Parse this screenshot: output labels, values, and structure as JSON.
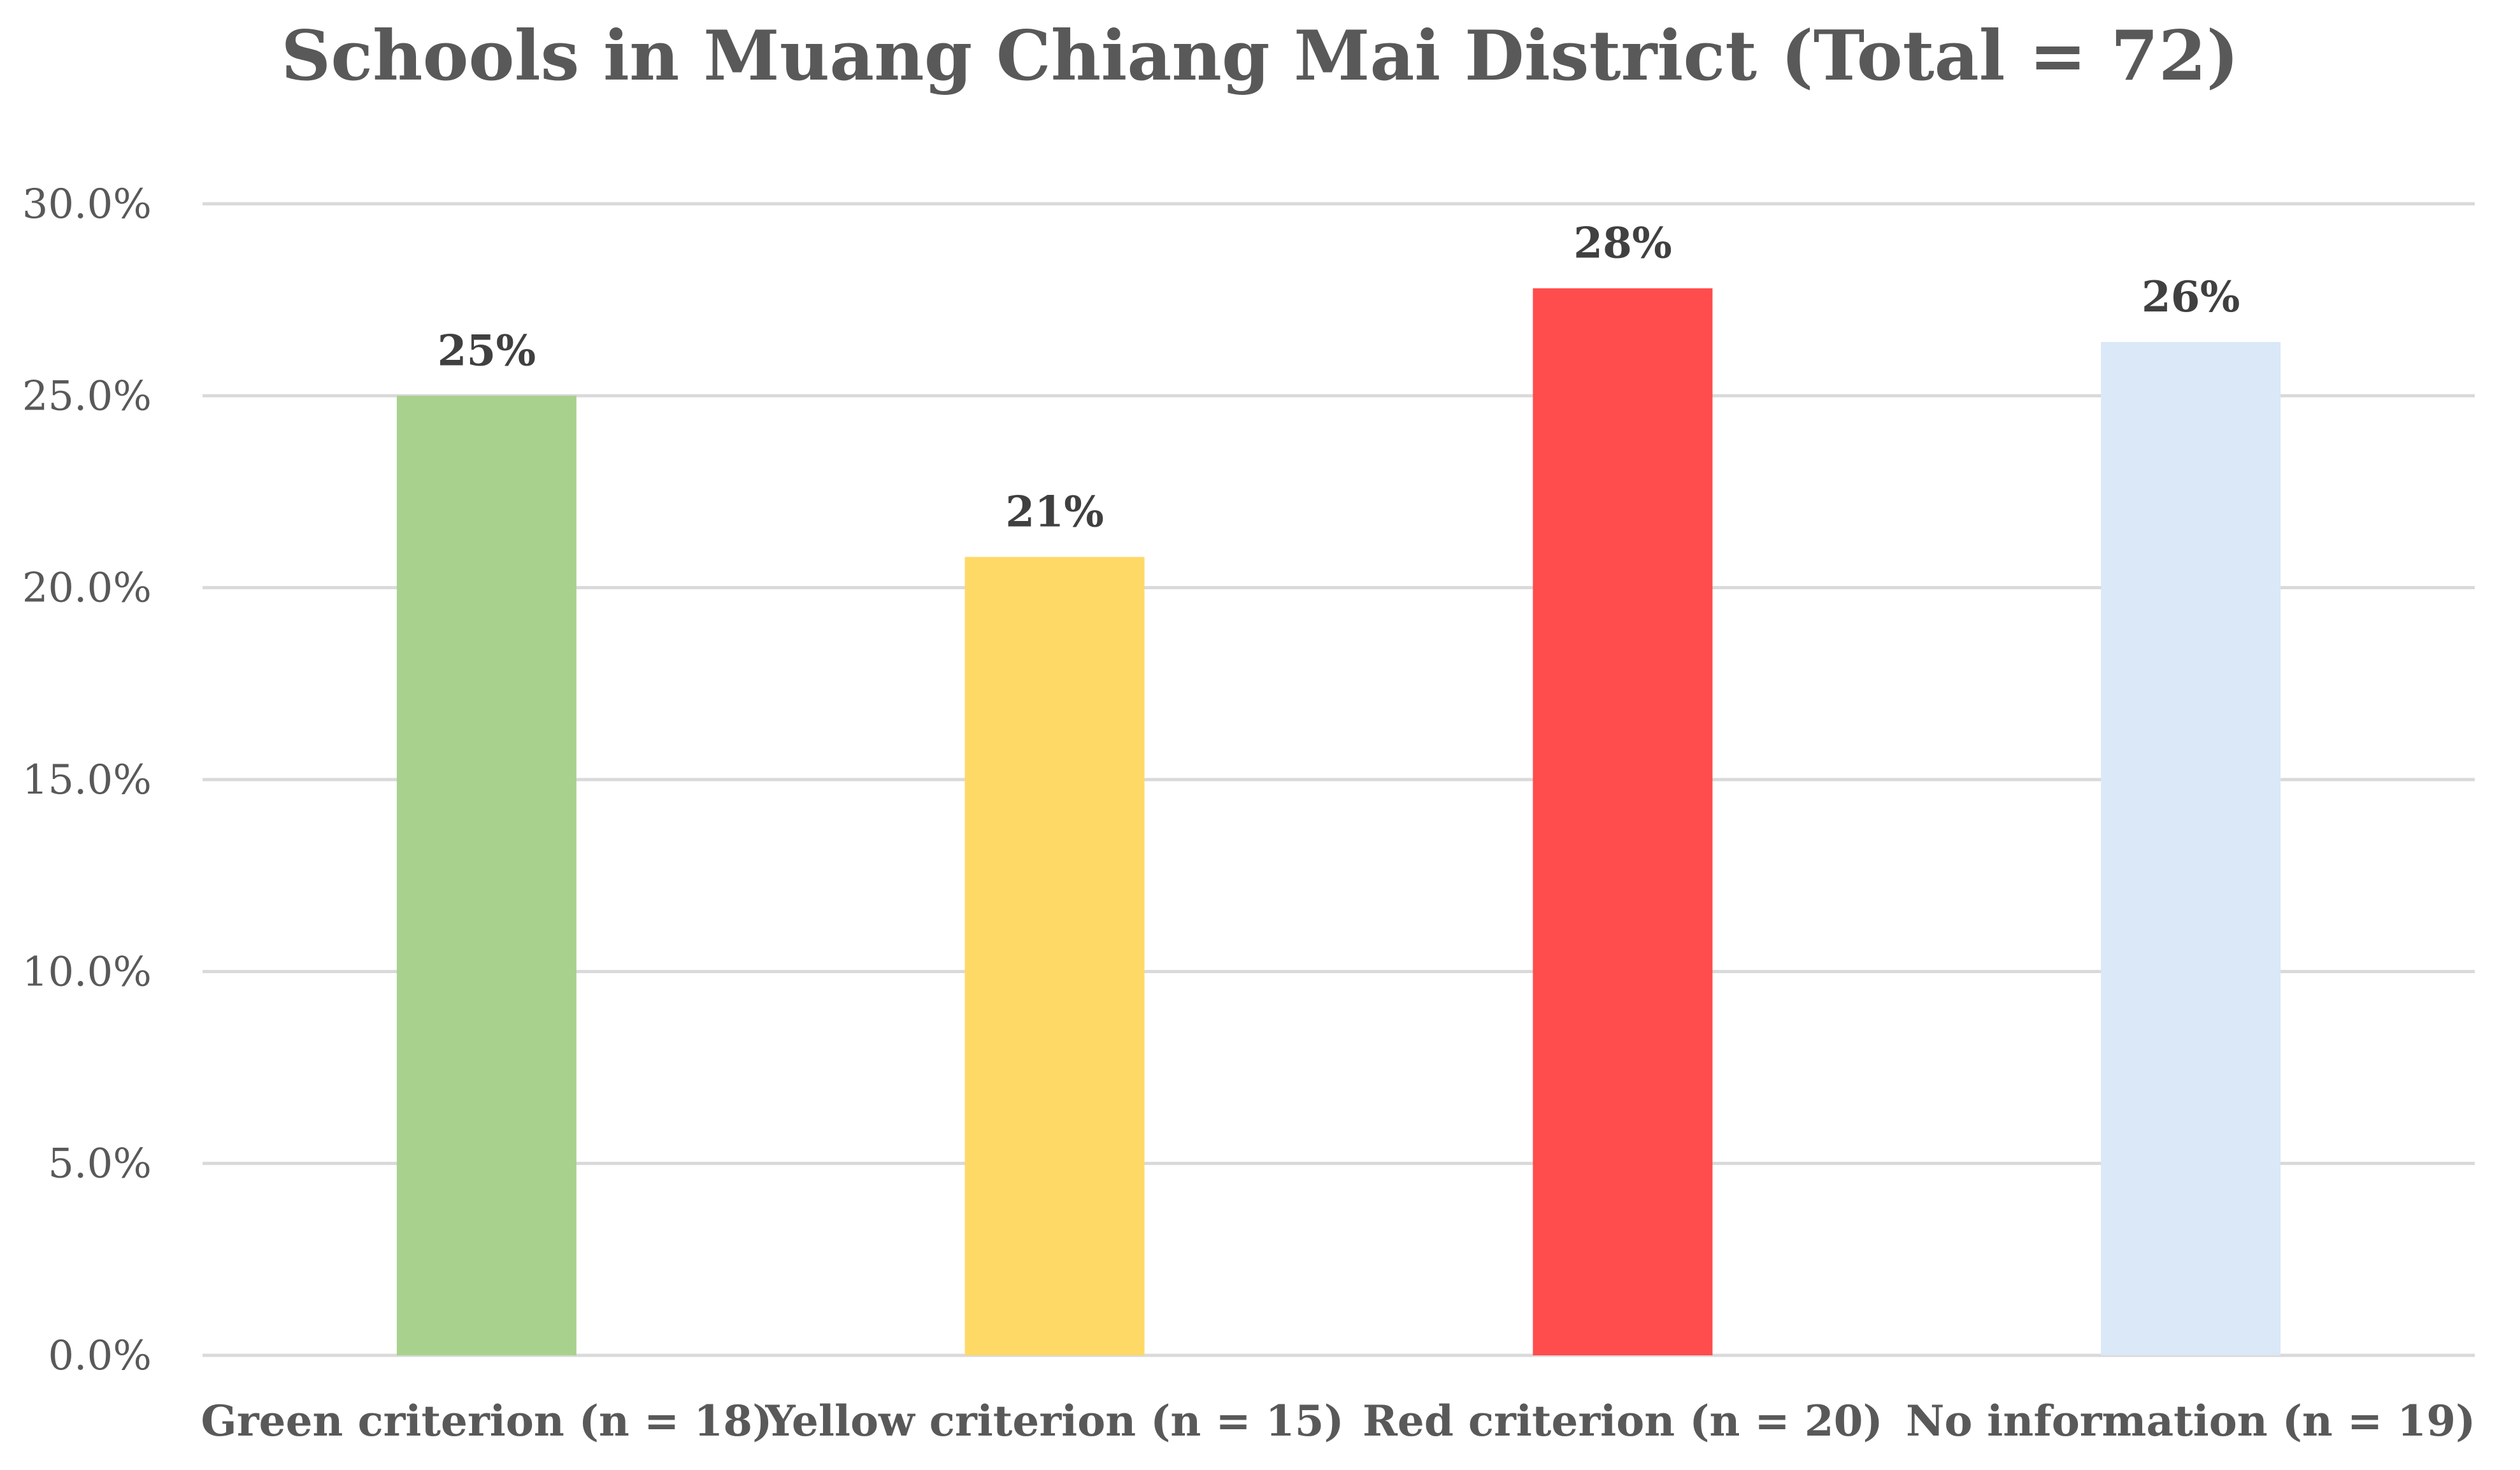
{
  "chart_data": {
    "type": "bar",
    "title": "Schools in Muang Chiang Mai District (Total = 72)",
    "xlabel": "",
    "ylabel": "",
    "categories": [
      "Green criterion (n = 18)",
      "Yellow criterion (n = 15)",
      "Red criterion (n = 20)",
      "No information (n = 19)"
    ],
    "values": [
      25.0,
      20.8,
      27.8,
      26.4
    ],
    "data_labels": [
      "25%",
      "21%",
      "28%",
      "26%"
    ],
    "colors": [
      "#a9d18e",
      "#ffd966",
      "#ff4c4c",
      "#dae8f7"
    ],
    "ylim": [
      0,
      30
    ],
    "yticks": [
      0,
      5,
      10,
      15,
      20,
      25,
      30
    ],
    "ytick_labels": [
      "0.0%",
      "5.0%",
      "10.0%",
      "15.0%",
      "20.0%",
      "25.0%",
      "30.0%"
    ],
    "grid": true,
    "legend": "none"
  }
}
